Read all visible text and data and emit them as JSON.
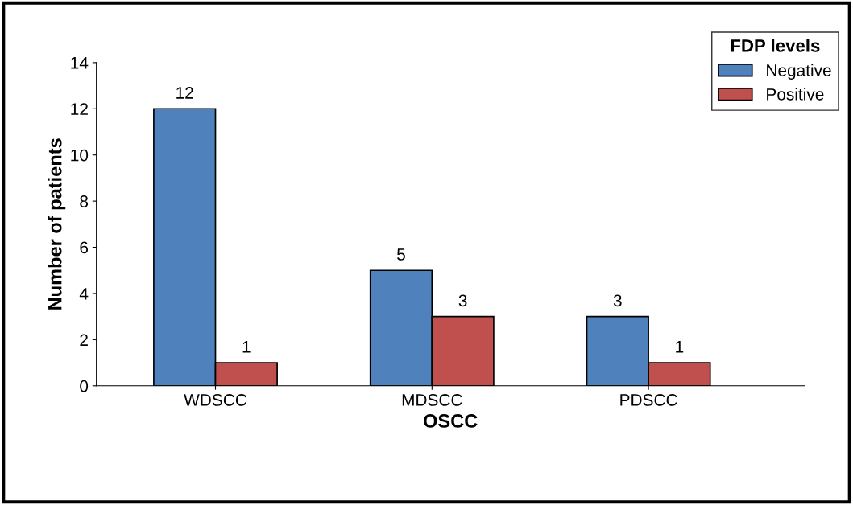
{
  "chart_data": {
    "type": "bar",
    "xlabel": "OSCC",
    "ylabel": "Number of patients",
    "legend_title": "FDP levels",
    "categories": [
      "WDSCC",
      "MDSCC",
      "PDSCC"
    ],
    "series": [
      {
        "name": "Negative",
        "color": "#4f81bd",
        "values": [
          12,
          5,
          3
        ]
      },
      {
        "name": "Positive",
        "color": "#c0504d",
        "values": [
          1,
          3,
          1
        ]
      }
    ],
    "ylim": [
      0,
      14
    ],
    "yticks": [
      0,
      2,
      4,
      6,
      8,
      10,
      12,
      14
    ],
    "grid": false,
    "legend": "top right",
    "data_labels": true
  }
}
